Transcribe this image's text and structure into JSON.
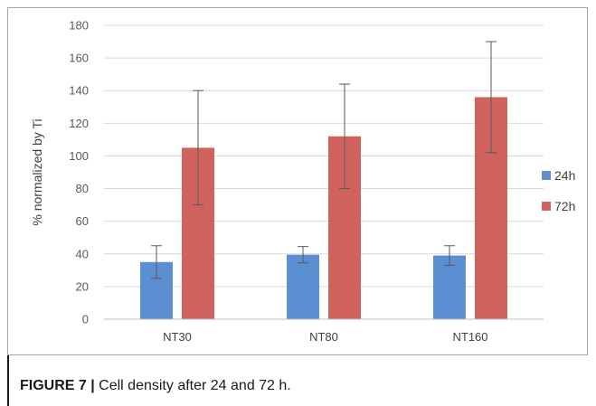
{
  "chart_data": {
    "type": "bar",
    "categories": [
      "NT30",
      "NT80",
      "NT160"
    ],
    "series": [
      {
        "name": "24h",
        "color": "#5b8fd1",
        "values": [
          35,
          39.5,
          39
        ],
        "error": [
          10,
          5,
          6
        ]
      },
      {
        "name": "72h",
        "color": "#d0625e",
        "values": [
          105,
          112,
          136
        ],
        "error": [
          35,
          32,
          34
        ]
      }
    ],
    "ylabel": "% normalized by Ti",
    "ylim": [
      0,
      180
    ],
    "yticks": [
      0,
      20,
      40,
      60,
      80,
      100,
      120,
      140,
      160,
      180
    ],
    "grid": true,
    "legend_position": "right"
  },
  "caption": {
    "label": "FIGURE 7 |",
    "text": " Cell density after 24 and 72 h."
  }
}
